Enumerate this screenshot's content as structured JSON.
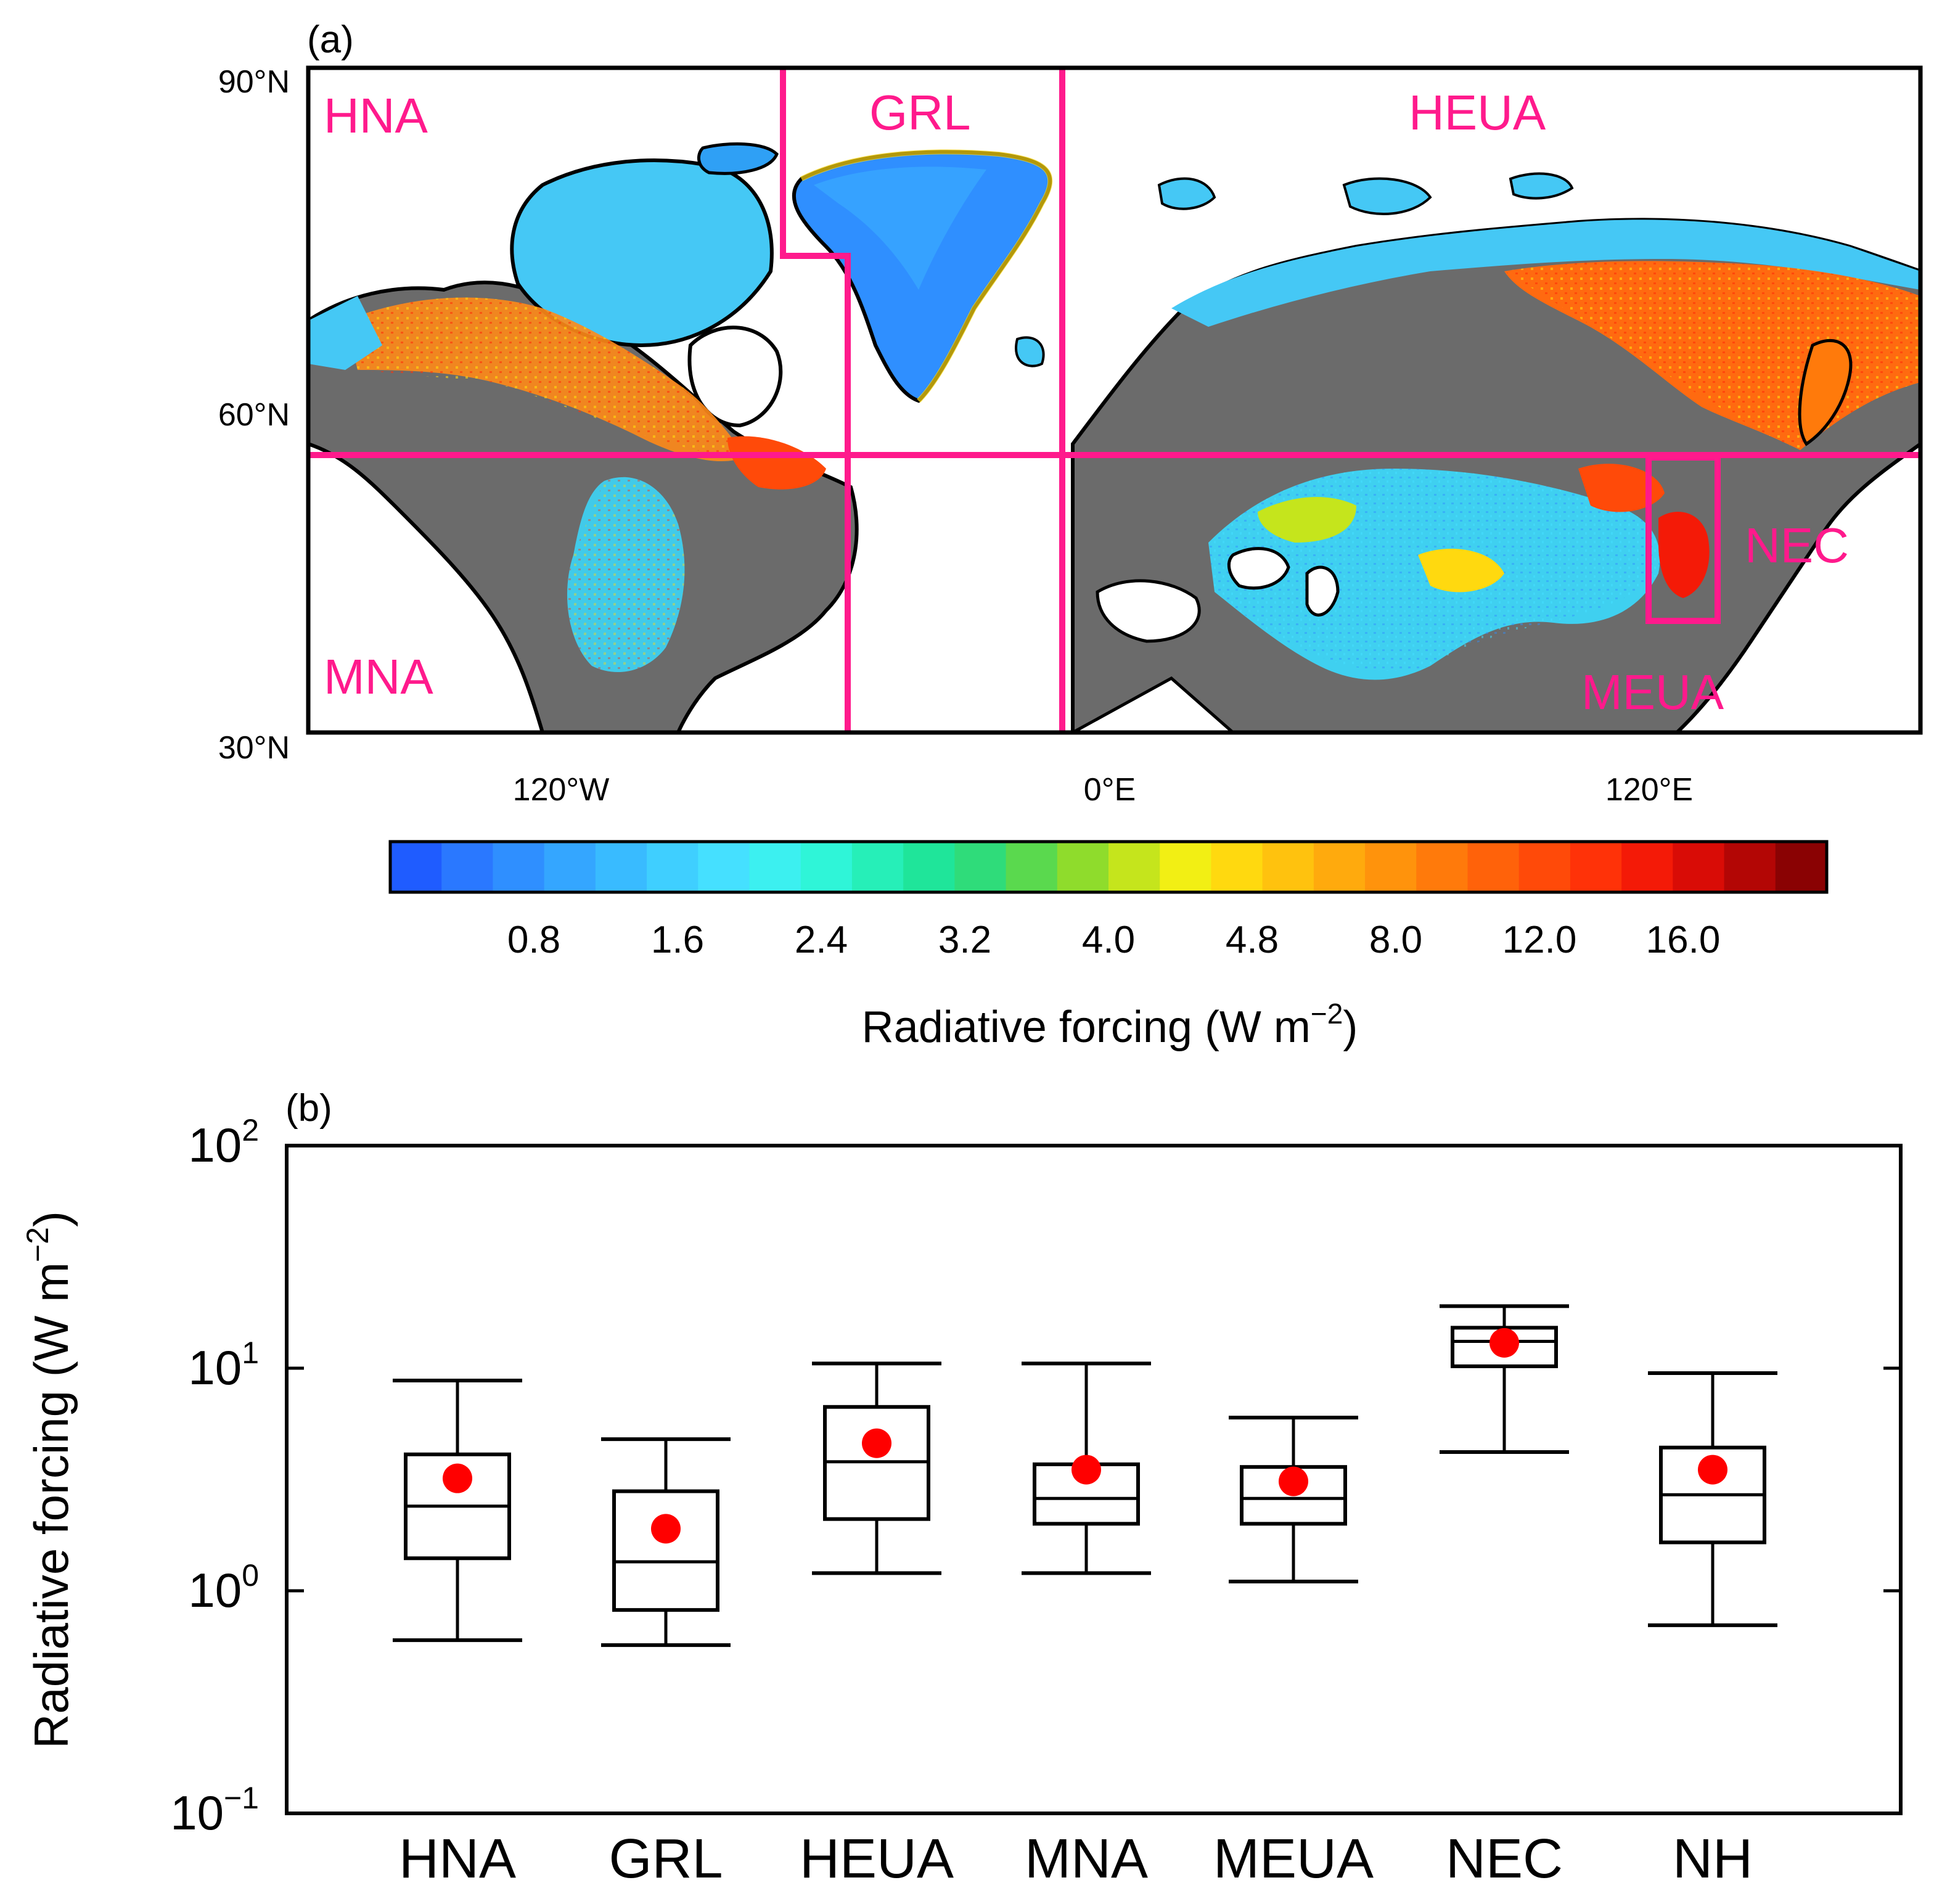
{
  "panel_a": {
    "label": "(a)",
    "lat_ticks": [
      "90°N",
      "60°N",
      "30°N"
    ],
    "lon_ticks": [
      "120°W",
      "0°E",
      "120°E"
    ],
    "regions": [
      {
        "name": "HNA"
      },
      {
        "name": "GRL"
      },
      {
        "name": "HEUA"
      },
      {
        "name": "MNA"
      },
      {
        "name": "MEUA"
      },
      {
        "name": "NEC"
      }
    ],
    "region_color": "#ff1a8c",
    "colorbar": {
      "tick_labels": [
        "0.8",
        "1.6",
        "2.4",
        "3.2",
        "4.0",
        "4.8",
        "8.0",
        "12.0",
        "16.0"
      ],
      "label": "Radiative forcing (W m",
      "label_sup": "−2",
      "label_end": ")",
      "colors": [
        "#1f5cff",
        "#2a78ff",
        "#2f8fff",
        "#34a6ff",
        "#39bbff",
        "#3fcfff",
        "#45e0ff",
        "#3cf0f0",
        "#2ff5d8",
        "#26efb8",
        "#1fe59a",
        "#2fdc7a",
        "#5ad94e",
        "#8fdc2c",
        "#c5e51c",
        "#f2ef14",
        "#ffd90f",
        "#ffc20e",
        "#ffaa0d",
        "#ff930c",
        "#ff7a0b",
        "#ff620a",
        "#ff4a09",
        "#ff3208",
        "#f41a07",
        "#d90c06",
        "#b30605",
        "#8a0203"
      ]
    }
  },
  "panel_b": {
    "label": "(b)"
  },
  "chart_data": {
    "type": "box",
    "title": "",
    "ylabel": "Radiative forcing (W m",
    "ylabel_sup": "−2",
    "ylabel_end": ")",
    "yscale": "log",
    "ylim": [
      0.1,
      100
    ],
    "ytick_base": "10",
    "yticks": [
      {
        "value": 0.1,
        "exp": "−1"
      },
      {
        "value": 1,
        "exp": "0"
      },
      {
        "value": 10,
        "exp": "1"
      },
      {
        "value": 100,
        "exp": "2"
      }
    ],
    "categories": [
      "HNA",
      "GRL",
      "HEUA",
      "MNA",
      "MEUA",
      "NEC",
      "NH"
    ],
    "series": [
      {
        "name": "Radiative forcing",
        "whisker_low": [
          0.6,
          0.57,
          1.2,
          1.2,
          1.1,
          4.2,
          0.7
        ],
        "q1": [
          1.4,
          0.82,
          2.1,
          2.0,
          2.0,
          10.2,
          1.65
        ],
        "median": [
          2.4,
          1.35,
          3.8,
          2.6,
          2.6,
          13.2,
          2.7
        ],
        "q3": [
          4.1,
          2.8,
          6.7,
          3.7,
          3.6,
          15.2,
          4.4
        ],
        "whisker_high": [
          8.8,
          4.8,
          10.5,
          10.5,
          6.0,
          19.0,
          9.5
        ],
        "mean": [
          3.2,
          1.9,
          4.6,
          3.5,
          3.1,
          13.0,
          3.5
        ]
      }
    ],
    "mean_marker_color": "#ff0000"
  }
}
